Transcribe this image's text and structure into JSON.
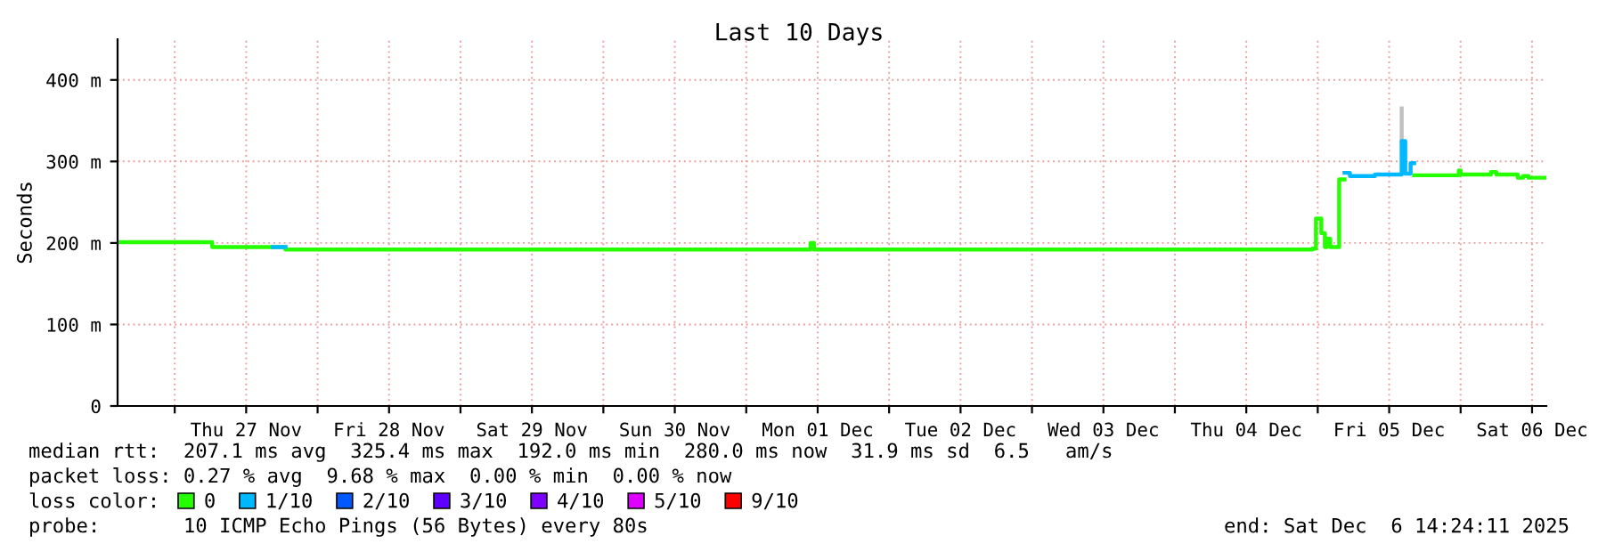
{
  "chart_data": {
    "type": "step",
    "title": "Last 10 Days",
    "ylabel": "Seconds",
    "xlim": [
      "2025-11-26T14:24",
      "2025-12-06T14:24"
    ],
    "xticks": [
      {
        "value": "2025-11-27T00:00",
        "label": null
      },
      {
        "value": "2025-11-27T12:00",
        "label": "Thu 27 Nov"
      },
      {
        "value": "2025-11-28T00:00",
        "label": null
      },
      {
        "value": "2025-11-28T12:00",
        "label": "Fri 28 Nov"
      },
      {
        "value": "2025-11-29T00:00",
        "label": null
      },
      {
        "value": "2025-11-29T12:00",
        "label": "Sat 29 Nov"
      },
      {
        "value": "2025-11-30T00:00",
        "label": null
      },
      {
        "value": "2025-11-30T12:00",
        "label": "Sun 30 Nov"
      },
      {
        "value": "2025-12-01T00:00",
        "label": null
      },
      {
        "value": "2025-12-01T12:00",
        "label": "Mon 01 Dec"
      },
      {
        "value": "2025-12-02T00:00",
        "label": null
      },
      {
        "value": "2025-12-02T12:00",
        "label": "Tue 02 Dec"
      },
      {
        "value": "2025-12-03T00:00",
        "label": null
      },
      {
        "value": "2025-12-03T12:00",
        "label": "Wed 03 Dec"
      },
      {
        "value": "2025-12-04T00:00",
        "label": null
      },
      {
        "value": "2025-12-04T12:00",
        "label": "Thu 04 Dec"
      },
      {
        "value": "2025-12-05T00:00",
        "label": null
      },
      {
        "value": "2025-12-05T12:00",
        "label": "Fri 05 Dec"
      },
      {
        "value": "2025-12-06T00:00",
        "label": null
      },
      {
        "value": "2025-12-06T12:00",
        "label": "Sat 06 Dec"
      }
    ],
    "ylim": [
      0,
      450
    ],
    "yticks": [
      {
        "value": 0,
        "label": "0"
      },
      {
        "value": 100,
        "label": "100 m"
      },
      {
        "value": 200,
        "label": "200 m"
      },
      {
        "value": 300,
        "label": "300 m"
      },
      {
        "value": 400,
        "label": "400 m"
      }
    ],
    "grid": true,
    "legend": "bottom",
    "legend_title": "loss color:",
    "series": [
      {
        "color": "#c0c0c0",
        "type": "line",
        "x": [
          "2025-12-05T14:06",
          "2025-12-05T14:06"
        ],
        "values": [
          325,
          365
        ]
      },
      {
        "name": "0",
        "color": "#26ff00",
        "x": [
          "2025-11-26T14:24",
          "2025-11-27T06:18",
          "2025-11-27T18:36",
          "2025-12-01T10:48",
          "2025-12-01T11:24",
          "2025-12-04T23:06",
          "2025-12-04T23:42",
          "2025-12-05T00:36",
          "2025-12-05T01:12",
          "2025-12-05T01:30",
          "2025-12-05T02:06",
          "2025-12-05T03:36",
          "2025-12-05T04:30",
          "2025-12-05T05:24",
          "2025-12-05T09:36",
          "2025-12-05T14:06",
          "2025-12-05T14:42",
          "2025-12-05T15:36",
          "2025-12-05T16:12",
          "2025-12-05T23:42",
          "2025-12-06T00:00",
          "2025-12-06T05:06",
          "2025-12-06T06:00",
          "2025-12-06T09:36",
          "2025-12-06T10:30",
          "2025-12-06T11:24",
          "2025-12-06T14:24"
        ],
        "values": [
          201,
          195,
          192,
          200,
          192,
          193,
          230,
          212,
          195,
          205,
          195,
          278,
          null,
          null,
          null,
          null,
          null,
          null,
          283,
          289,
          284,
          287,
          284,
          280,
          282,
          280,
          280
        ]
      },
      {
        "name": "1/10",
        "color": "#00b8ff",
        "x": [
          "2025-11-27T16:30",
          "2025-11-27T18:36",
          "2025-12-05T04:30",
          "2025-12-05T05:24",
          "2025-12-05T09:36",
          "2025-12-05T14:06",
          "2025-12-05T14:42",
          "2025-12-05T15:36",
          "2025-12-05T16:12"
        ],
        "values": [
          195,
          null,
          286,
          282,
          284,
          325,
          285,
          298,
          298
        ]
      },
      {
        "name": "2/10",
        "color": "#0059ff"
      },
      {
        "name": "3/10",
        "color": "#5e00ff"
      },
      {
        "name": "4/10",
        "color": "#7e00ff"
      },
      {
        "name": "5/10",
        "color": "#dd00ff"
      },
      {
        "name": "9/10",
        "color": "#ff0000"
      }
    ],
    "annotations": [
      "median rtt:  207.1 ms avg  325.4 ms max  192.0 ms min  280.0 ms now  31.9 ms sd  6.5   am/s",
      "packet loss: 0.27 % avg  9.68 % max  0.00 % min  0.00 % now",
      "probe:       10 ICMP Echo Pings (56 Bytes) every 80s",
      "end: Sat Dec  6 14:24:11 2025"
    ]
  }
}
